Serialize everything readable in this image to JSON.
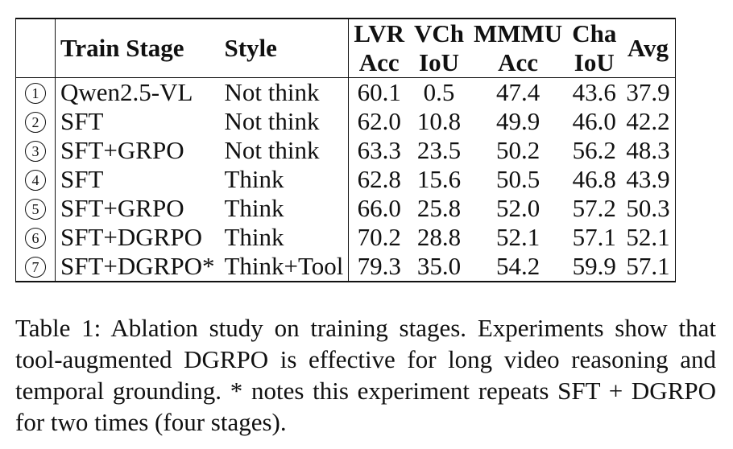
{
  "table": {
    "headers": {
      "train_stage": "Train Stage",
      "style": "Style",
      "lvr_top": "LVR",
      "lvr_bottom": "Acc",
      "vch_top": "VCh",
      "vch_bottom": "IoU",
      "mmmu_top": "MMMU",
      "mmmu_bottom": "Acc",
      "cha_top": "Cha",
      "cha_bottom": "IoU",
      "avg": "Avg"
    },
    "rows": [
      {
        "idx": "1",
        "stage": "Qwen2.5-VL",
        "style": "Not think",
        "lvr": "60.1",
        "vch": "0.5",
        "mmmu": "47.4",
        "cha": "43.6",
        "avg": "37.9"
      },
      {
        "idx": "2",
        "stage": "SFT",
        "style": "Not think",
        "lvr": "62.0",
        "vch": "10.8",
        "mmmu": "49.9",
        "cha": "46.0",
        "avg": "42.2"
      },
      {
        "idx": "3",
        "stage": "SFT+GRPO",
        "style": "Not think",
        "lvr": "63.3",
        "vch": "23.5",
        "mmmu": "50.2",
        "cha": "56.2",
        "avg": "48.3"
      },
      {
        "idx": "4",
        "stage": "SFT",
        "style": "Think",
        "lvr": "62.8",
        "vch": "15.6",
        "mmmu": "50.5",
        "cha": "46.8",
        "avg": "43.9"
      },
      {
        "idx": "5",
        "stage": "SFT+GRPO",
        "style": "Think",
        "lvr": "66.0",
        "vch": "25.8",
        "mmmu": "52.0",
        "cha": "57.2",
        "avg": "50.3"
      },
      {
        "idx": "6",
        "stage": "SFT+DGRPO",
        "style": "Think",
        "lvr": "70.2",
        "vch": "28.8",
        "mmmu": "52.1",
        "cha": "57.1",
        "avg": "52.1"
      },
      {
        "idx": "7",
        "stage": "SFT+DGRPO*",
        "style": "Think+Tool",
        "lvr": "79.3",
        "vch": "35.0",
        "mmmu": "54.2",
        "cha": "59.9",
        "avg": "57.1"
      }
    ]
  },
  "caption": "Table 1: Ablation study on training stages. Experiments show that tool-augmented DGRPO is effective for long video reasoning and temporal grounding. * notes this experiment repeats SFT + DGRPO for two times (four stages)."
}
